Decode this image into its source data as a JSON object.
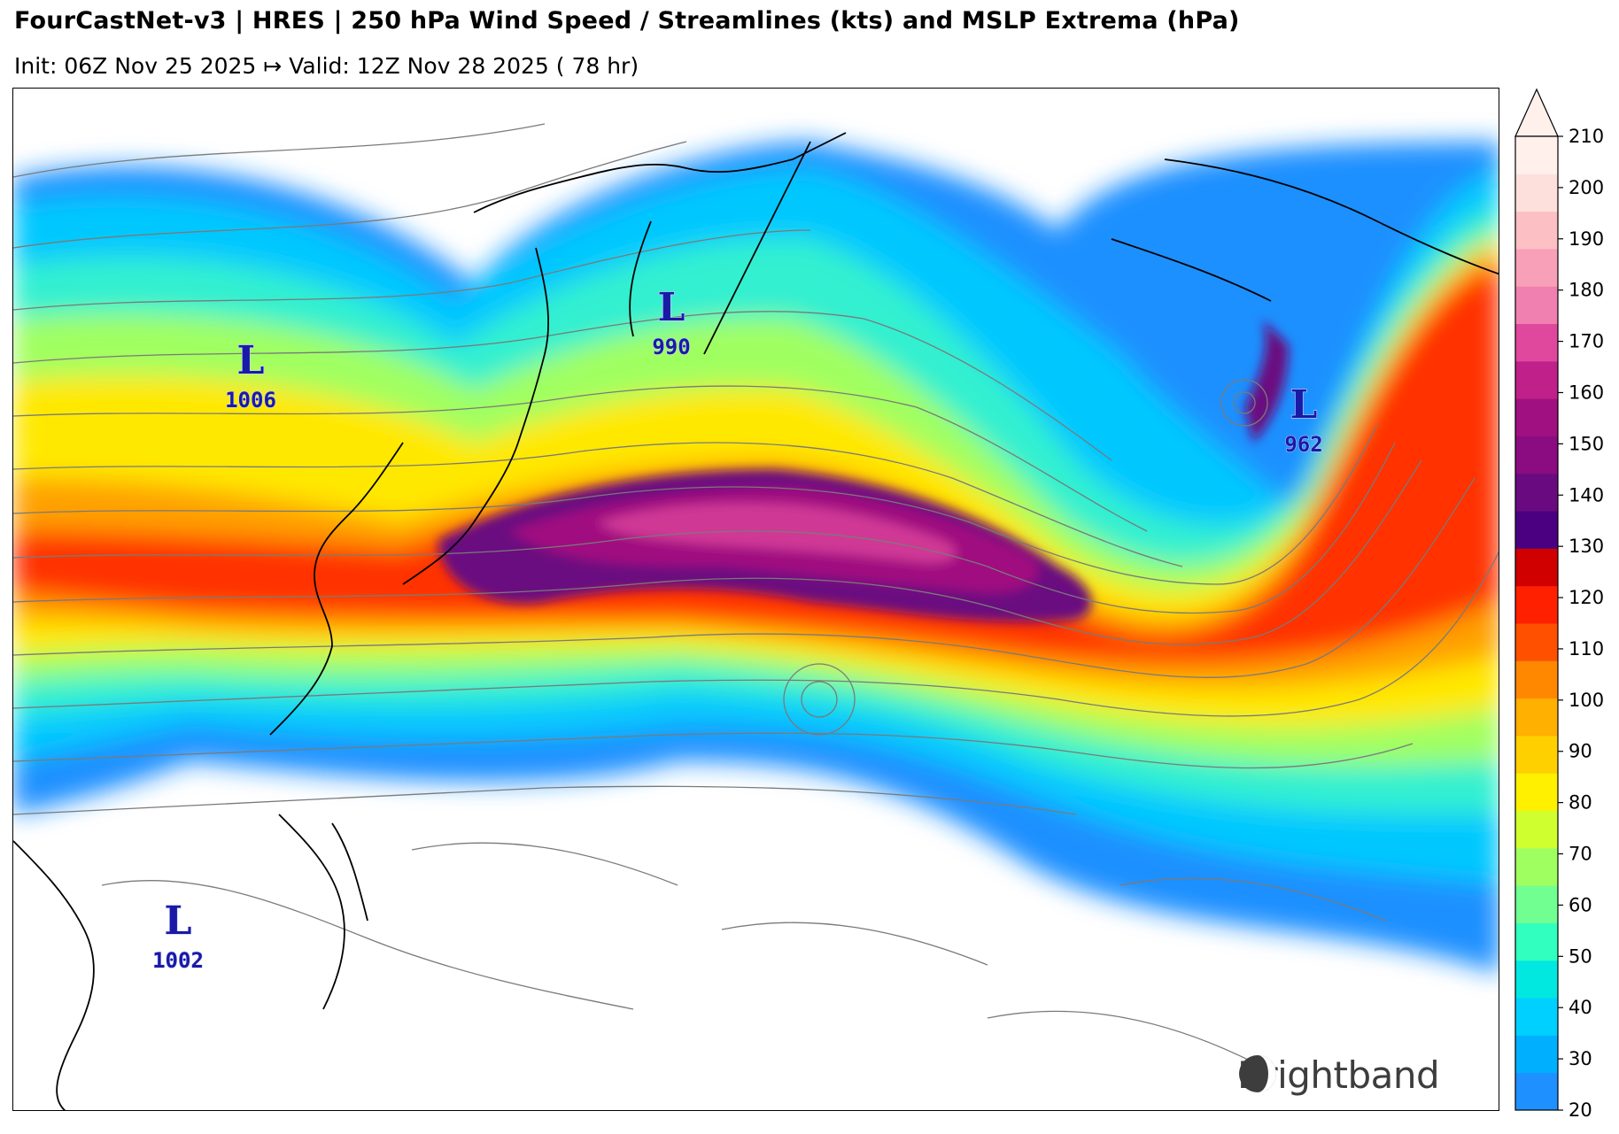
{
  "header": {
    "title": "FourCastNet-v3 | HRES | 250 hPa Wind Speed / Streamlines (kts) and MSLP Extrema (hPa)",
    "subtitle": "Init: 06Z Nov 25 2025 ↦ Valid: 12Z Nov 28 2025 ( 78 hr)"
  },
  "lows": [
    {
      "symbol": "L",
      "value": "1006"
    },
    {
      "symbol": "L",
      "value": "990"
    },
    {
      "symbol": "L",
      "value": "962"
    },
    {
      "symbol": "L",
      "value": "1002"
    }
  ],
  "colorbar": {
    "ticks": [
      "20",
      "30",
      "40",
      "50",
      "60",
      "70",
      "80",
      "90",
      "100",
      "110",
      "120",
      "130",
      "140",
      "150",
      "160",
      "170",
      "180",
      "190",
      "200",
      "210"
    ],
    "colors": [
      "#1e90ff",
      "#00b0ff",
      "#00d0ff",
      "#00e8e0",
      "#30ffc0",
      "#70ff90",
      "#a0ff60",
      "#d0ff30",
      "#fff000",
      "#ffd000",
      "#ffb000",
      "#ff8800",
      "#ff5000",
      "#ff2000",
      "#d00000",
      "#4b0082",
      "#6a0a80",
      "#8a0c80",
      "#a01080",
      "#c0208a",
      "#e0489e",
      "#f080b0",
      "#f8a0b8",
      "#fcc0c4",
      "#fde0dc",
      "#fff0ec"
    ],
    "extend": "max"
  },
  "brand": {
    "name": "Brightband"
  }
}
